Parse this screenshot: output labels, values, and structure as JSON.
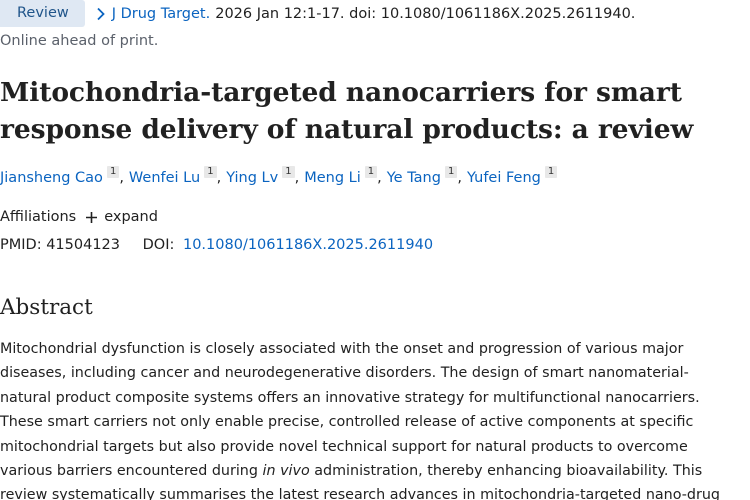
{
  "citation": {
    "badge": "Review",
    "journal": "J Drug Target.",
    "details": "2026 Jan 12:1-17. doi: 10.1080/1061186X.2025.2611940."
  },
  "status": "Online ahead of print.",
  "title_line1": "Mitochondria-targeted nanocarriers for smart",
  "title_line2": "response delivery of natural products: a review",
  "authors": [
    {
      "name": "Jiansheng Cao",
      "aff": "1"
    },
    {
      "name": "Wenfei Lu",
      "aff": "1"
    },
    {
      "name": "Ying Lv",
      "aff": "1"
    },
    {
      "name": "Meng Li",
      "aff": "1"
    },
    {
      "name": "Ye Tang",
      "aff": "1"
    },
    {
      "name": "Yufei Feng",
      "aff": "1"
    }
  ],
  "author_separator": ",",
  "affiliations": {
    "label": "Affiliations",
    "expand_label": "expand"
  },
  "identifiers": {
    "pmid_label": "PMID:",
    "pmid": "41504123",
    "doi_label": "DOI:",
    "doi": "10.1080/1061186X.2025.2611940"
  },
  "abstract": {
    "heading": "Abstract",
    "text_before_italic": "Mitochondrial dysfunction is closely associated with the onset and progression of various major diseases, including cancer and neurodegenerative disorders. The design of smart nanomaterial-natural product composite systems offers an innovative strategy for multifunctional nanocarriers. These smart carriers not only enable precise, controlled release of active components at specific mitochondrial targets but also provide novel technical support for natural products to overcome various barriers encountered during ",
    "italic": "in vivo",
    "text_after_italic": " administration, thereby enhancing bioavailability. This review systematically summarises the latest research advances in mitochondria-targeted nano-drug"
  },
  "icons": {
    "breadcrumb": "chevron-right-icon",
    "expand": "plus-icon"
  },
  "colors": {
    "link": "#0b64c0",
    "badge_bg": "#dfe8f3",
    "badge_text": "#20558a",
    "muted": "#5b616b",
    "text": "#212121"
  }
}
